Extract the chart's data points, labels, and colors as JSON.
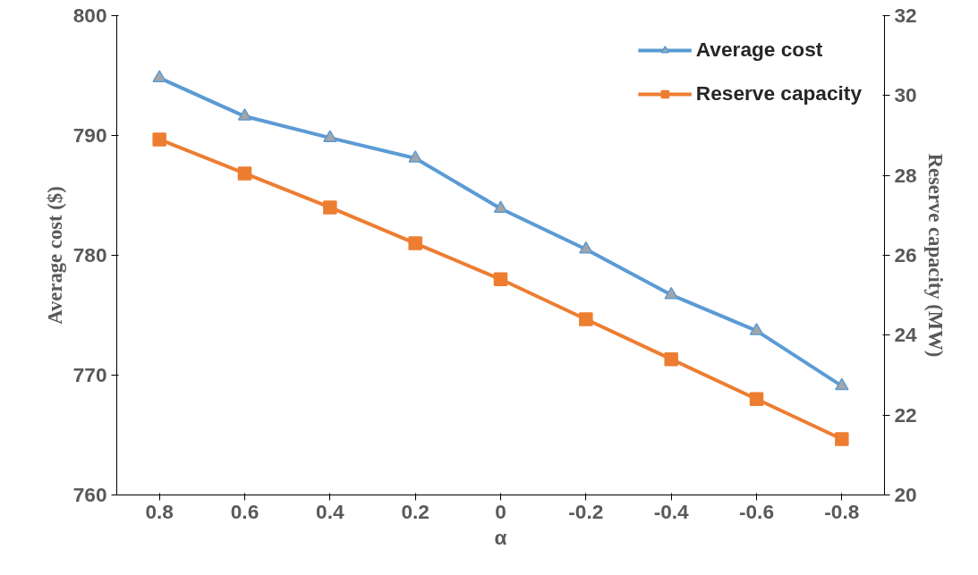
{
  "chart_data": {
    "type": "line",
    "xlabel": "α",
    "ylabel": "Average cost ($)",
    "y2label": "Reserve capacity (MW)",
    "categories": [
      "0.8",
      "0.6",
      "0.4",
      "0.2",
      "0",
      "-0.2",
      "-0.4",
      "-0.6",
      "-0.8"
    ],
    "series": [
      {
        "name": "Average cost",
        "color": "#5b9bd5",
        "marker": "triangle",
        "values": [
          794.8,
          791.6,
          789.8,
          788.1,
          783.9,
          780.5,
          776.7,
          773.7,
          769.1
        ]
      },
      {
        "name": "Reserve capacity",
        "color": "#ed7d31",
        "marker": "square",
        "axis": "y2",
        "values": [
          28.9,
          28.05,
          27.2,
          26.3,
          25.4,
          24.4,
          23.4,
          22.4,
          21.4
        ]
      }
    ],
    "ylim": [
      760,
      800
    ],
    "yticks": [
      760,
      770,
      780,
      790,
      800
    ],
    "y2lim": [
      20,
      32
    ],
    "y2ticks": [
      20,
      22,
      24,
      26,
      28,
      30,
      32
    ],
    "grid": false,
    "legend": "top right"
  }
}
